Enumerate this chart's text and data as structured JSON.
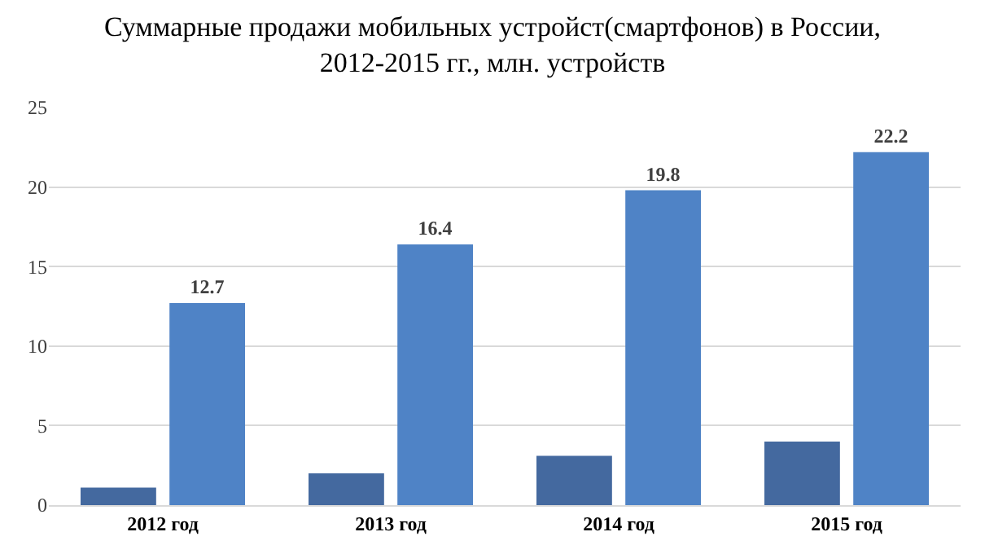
{
  "chart_data": {
    "type": "bar",
    "title": "Суммарные продажи мобильных устройст(смартфонов) в России, 2012-2015 гг., млн. устройств",
    "categories": [
      "2012 год",
      "2013 год",
      "2014 год",
      "2015 год"
    ],
    "series": [
      {
        "color": "#44699f",
        "values": [
          1.1,
          2.0,
          3.1,
          4.0
        ]
      },
      {
        "color": "#4f83c6",
        "values": [
          12.7,
          16.4,
          19.8,
          22.2
        ],
        "value_labels": [
          "12.7",
          "16.4",
          "19.8",
          "22.2"
        ]
      }
    ],
    "ylim": [
      0,
      25
    ],
    "yticks": [
      0,
      5,
      10,
      15,
      20,
      25
    ],
    "grid": "y",
    "legend": false
  }
}
